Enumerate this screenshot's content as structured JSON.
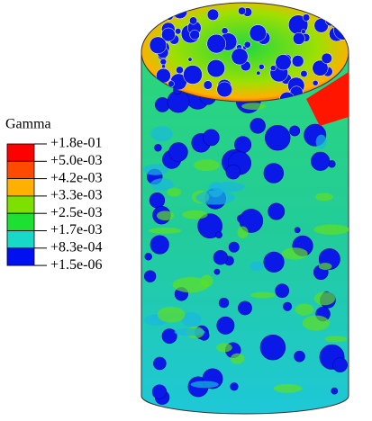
{
  "legend": {
    "title": "Gamma",
    "labels": [
      "+1.8e-01",
      "+5.0e-03",
      "+4.2e-03",
      "+3.3e-03",
      "+2.5e-03",
      "+1.7e-03",
      "+8.3e-04",
      "+1.5e-06"
    ],
    "colors": [
      "#ff0000",
      "#ff4a00",
      "#ffb000",
      "#7ee000",
      "#1ee032",
      "#18d8c8",
      "#0010f0"
    ]
  }
}
